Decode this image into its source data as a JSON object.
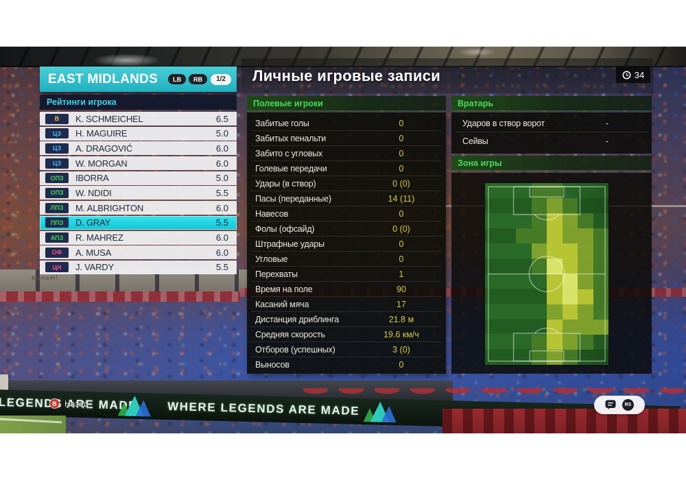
{
  "team_panel": {
    "title": "EAST MIDLANDS",
    "lb_label": "LB",
    "rb_label": "RB",
    "page_indicator": "1/2",
    "section_title": "Рейтинги игрока",
    "role_colors": {
      "gk": "#e9c43c",
      "df": "#45b9e8",
      "mf": "#46d455",
      "fw": "#f25287"
    },
    "players": [
      {
        "pos": "В",
        "role": "gk",
        "name": "K. SCHMEICHEL",
        "rating": "6.5",
        "selected": false
      },
      {
        "pos": "ЦЗ",
        "role": "df",
        "name": "H. MAGUIRE",
        "rating": "5.0",
        "selected": false
      },
      {
        "pos": "ЦЗ",
        "role": "df",
        "name": "A. DRAGOVIĆ",
        "rating": "6.0",
        "selected": false
      },
      {
        "pos": "ЦЗ",
        "role": "df",
        "name": "W. MORGAN",
        "rating": "6.0",
        "selected": false
      },
      {
        "pos": "ОПЗ",
        "role": "mf",
        "name": "IBORRA",
        "rating": "5.0",
        "selected": false
      },
      {
        "pos": "ОПЗ",
        "role": "mf",
        "name": "W. NDIDI",
        "rating": "5.5",
        "selected": false
      },
      {
        "pos": "ЛПЗ",
        "role": "mf",
        "name": "M. ALBRIGHTON",
        "rating": "6.0",
        "selected": false
      },
      {
        "pos": "ППЗ",
        "role": "mf",
        "name": "D. GRAY",
        "rating": "5.5",
        "selected": true
      },
      {
        "pos": "АПЗ",
        "role": "mf",
        "name": "R. MAHREZ",
        "rating": "6.0",
        "selected": false
      },
      {
        "pos": "ОФ",
        "role": "fw",
        "name": "A. MUSA",
        "rating": "6.0",
        "selected": false
      },
      {
        "pos": "ЦН",
        "role": "fw",
        "name": "J. VARDY",
        "rating": "5.5",
        "selected": false
      }
    ]
  },
  "main": {
    "title": "Личные игровые записи",
    "time_badge": "34",
    "field_players": {
      "header": "Полевые игроки",
      "stats": [
        {
          "label": "Забитые голы",
          "value": "0"
        },
        {
          "label": "Забитых пенальти",
          "value": "0"
        },
        {
          "label": "Забито с угловых",
          "value": "0"
        },
        {
          "label": "Голевые передачи",
          "value": "0"
        },
        {
          "label": "Удары (в створ)",
          "value": "0 (0)"
        },
        {
          "label": "Пасы (переданные)",
          "value": "14 (11)"
        },
        {
          "label": "Навесов",
          "value": "0"
        },
        {
          "label": "Фолы (офсайд)",
          "value": "0 (0)"
        },
        {
          "label": "Штрафные удары",
          "value": "0"
        },
        {
          "label": "Угловые",
          "value": "0"
        },
        {
          "label": "Перехваты",
          "value": "1"
        },
        {
          "label": "Время на поле",
          "value": "90"
        },
        {
          "label": "Касаний мяча",
          "value": "17"
        },
        {
          "label": "Дистанция дриблинга",
          "value": "21.8 м"
        },
        {
          "label": "Средняя скорость",
          "value": "19.6 км/ч"
        },
        {
          "label": "Отборов (успешных)",
          "value": "3 (0)"
        },
        {
          "label": "Выносов",
          "value": "0"
        }
      ]
    },
    "goalkeeper": {
      "header": "Вратарь",
      "stats": [
        {
          "label": "Ударов в створ ворот",
          "value": "-"
        },
        {
          "label": "Сейвы",
          "value": "-"
        }
      ]
    },
    "zone": {
      "header": "Зона игры",
      "heatmap": {
        "colors": {
          "1": "#4a7d28",
          "2": "#8aa72e",
          "3": "#c6cf36",
          "4": "#ecf272"
        },
        "grid": [
          "00011000",
          "00012100",
          "00013210",
          "00113221",
          "00023321",
          "00014321",
          "00003421",
          "00003431",
          "00002321",
          "00003222",
          "00013210",
          "00012100"
        ]
      }
    }
  },
  "footer": {
    "back_button": "B",
    "back_label": "Назад",
    "rs_label": "RS"
  },
  "background": {
    "banner_text": "WHERE LEGENDS ARE MADE",
    "konami_text": "Konami"
  }
}
